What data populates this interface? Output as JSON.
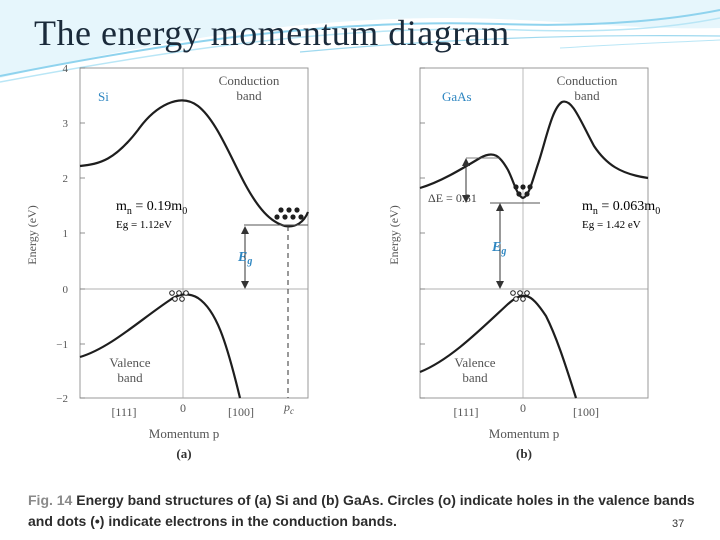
{
  "slide": {
    "title": "The energy momentum diagram",
    "page_number": "37"
  },
  "panel_a": {
    "material": "Si",
    "conduction_label": [
      "Conduction",
      "band"
    ],
    "valence_label": [
      "Valence",
      "band"
    ],
    "y_axis_title": "Energy (eV)",
    "y_ticks": [
      "4",
      "3",
      "2",
      "1",
      "0",
      "−1",
      "−2"
    ],
    "x_tick_left": "[111]",
    "x_tick_zero": "0",
    "x_tick_right": "[100]",
    "pc_label": "p",
    "pc_sub": "c",
    "x_axis_title": "Momentum p",
    "panel_label": "(a)",
    "eg_symbol": "E",
    "eg_sub": "g",
    "mass_main": "m",
    "mass_sub": "n",
    "mass_value": " = 0.19m",
    "mass_value_sub": "0",
    "gap_text": "Eg = 1.12eV"
  },
  "panel_b": {
    "material": "GaAs",
    "conduction_label": [
      "Conduction",
      "band"
    ],
    "valence_label": [
      "Valence",
      "band"
    ],
    "y_axis_title": "Energy (eV)",
    "x_tick_left": "[111]",
    "x_tick_zero": "0",
    "x_tick_right": "[100]",
    "x_axis_title": "Momentum p",
    "panel_label": "(b)",
    "eg_symbol": "E",
    "eg_sub": "g",
    "delta_e": "ΔE = 0.31",
    "mass_main": "m",
    "mass_sub": "n",
    "mass_value": " = 0.063m",
    "mass_value_sub": "0",
    "gap_text": "Eg = 1.42 eV"
  },
  "caption": {
    "fig_number": "Fig. 14",
    "text": "  Energy band structures of (a) Si and (b) GaAs. Circles (o) indicate holes in the valence bands and dots (•) indicate electrons in the conduction bands."
  },
  "colors": {
    "title": "#1a2a3a",
    "material_label": "#2e86c1",
    "curve": "#1e1e1e",
    "axis": "#666666",
    "swoosh": "#8fd3ee"
  }
}
